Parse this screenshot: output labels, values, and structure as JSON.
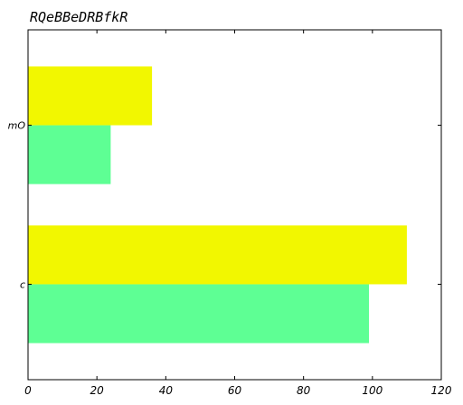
{
  "chart_data": {
    "type": "bar",
    "orientation": "horizontal",
    "title": "RQeBBeDRBfkR",
    "xlabel": "",
    "ylabel": "",
    "categories": [
      "c",
      "mO"
    ],
    "series": [
      {
        "values": [
          99,
          24
        ],
        "color": "#5eff94"
      },
      {
        "values": [
          110,
          36
        ],
        "color": "#f2f700"
      }
    ],
    "xlim": [
      0,
      120
    ],
    "x_ticks": [
      "0",
      "20",
      "40",
      "60",
      "80",
      "100",
      "120"
    ],
    "grid": false,
    "legend": "none"
  }
}
